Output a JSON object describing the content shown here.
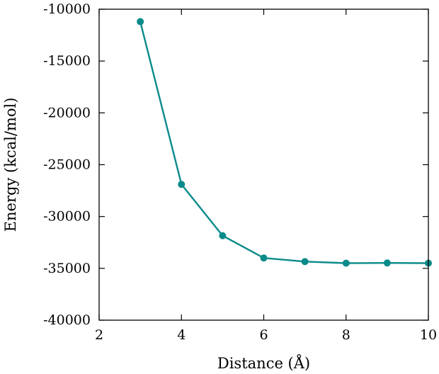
{
  "chart_data": {
    "type": "line",
    "title": "",
    "xlabel": "Distance (Å)",
    "ylabel": "Energy (kcal/mol)",
    "xlim": [
      2,
      10
    ],
    "ylim": [
      -40000,
      -10000
    ],
    "x_ticks": [
      2,
      4,
      6,
      8,
      10
    ],
    "y_ticks": [
      -10000,
      -15000,
      -20000,
      -25000,
      -30000,
      -35000,
      -40000
    ],
    "grid": false,
    "legend": "none",
    "series": [
      {
        "color": "#0b8a8a",
        "marker": "circle",
        "x": [
          3,
          4,
          5,
          6,
          7,
          8,
          9,
          10
        ],
        "y": [
          -11200,
          -26900,
          -31850,
          -34000,
          -34350,
          -34500,
          -34480,
          -34500
        ]
      }
    ]
  }
}
